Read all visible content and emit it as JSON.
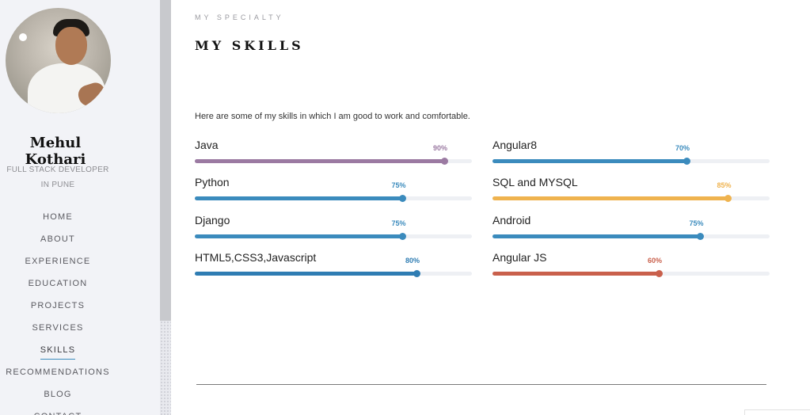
{
  "sidebar": {
    "name": "Mehul Kothari",
    "role_line1": "FULL STACK DEVELOPER",
    "role_line2": "IN PUNE",
    "nav": [
      "HOME",
      "ABOUT",
      "EXPERIENCE",
      "EDUCATION",
      "PROJECTS",
      "SERVICES",
      "SKILLS",
      "RECOMMENDATIONS",
      "BLOG",
      "CONTACT"
    ],
    "active_nav": "SKILLS",
    "accent": "#3b8bbd"
  },
  "section": {
    "eyebrow": "MY SPECIALTY",
    "title": "MY SKILLS",
    "intro": "Here are some of my skills in which I am good to work and comfortable."
  },
  "skills": [
    {
      "label": "Java",
      "percent": 90,
      "percent_text": "90%",
      "color": "#9b7aa2"
    },
    {
      "label": "Angular8",
      "percent": 70,
      "percent_text": "70%",
      "color": "#3b8bbd"
    },
    {
      "label": "Python",
      "percent": 75,
      "percent_text": "75%",
      "color": "#3b8bbd"
    },
    {
      "label": "SQL and MYSQL",
      "percent": 85,
      "percent_text": "85%",
      "color": "#efb34f"
    },
    {
      "label": "Django",
      "percent": 75,
      "percent_text": "75%",
      "color": "#3b8bbd"
    },
    {
      "label": "Android",
      "percent": 75,
      "percent_text": "75%",
      "color": "#3b8bbd"
    },
    {
      "label": "HTML5,CSS3,Javascript",
      "percent": 80,
      "percent_text": "80%",
      "color": "#2f7db3"
    },
    {
      "label": "Angular JS",
      "percent": 60,
      "percent_text": "60%",
      "color": "#c9604c"
    }
  ]
}
